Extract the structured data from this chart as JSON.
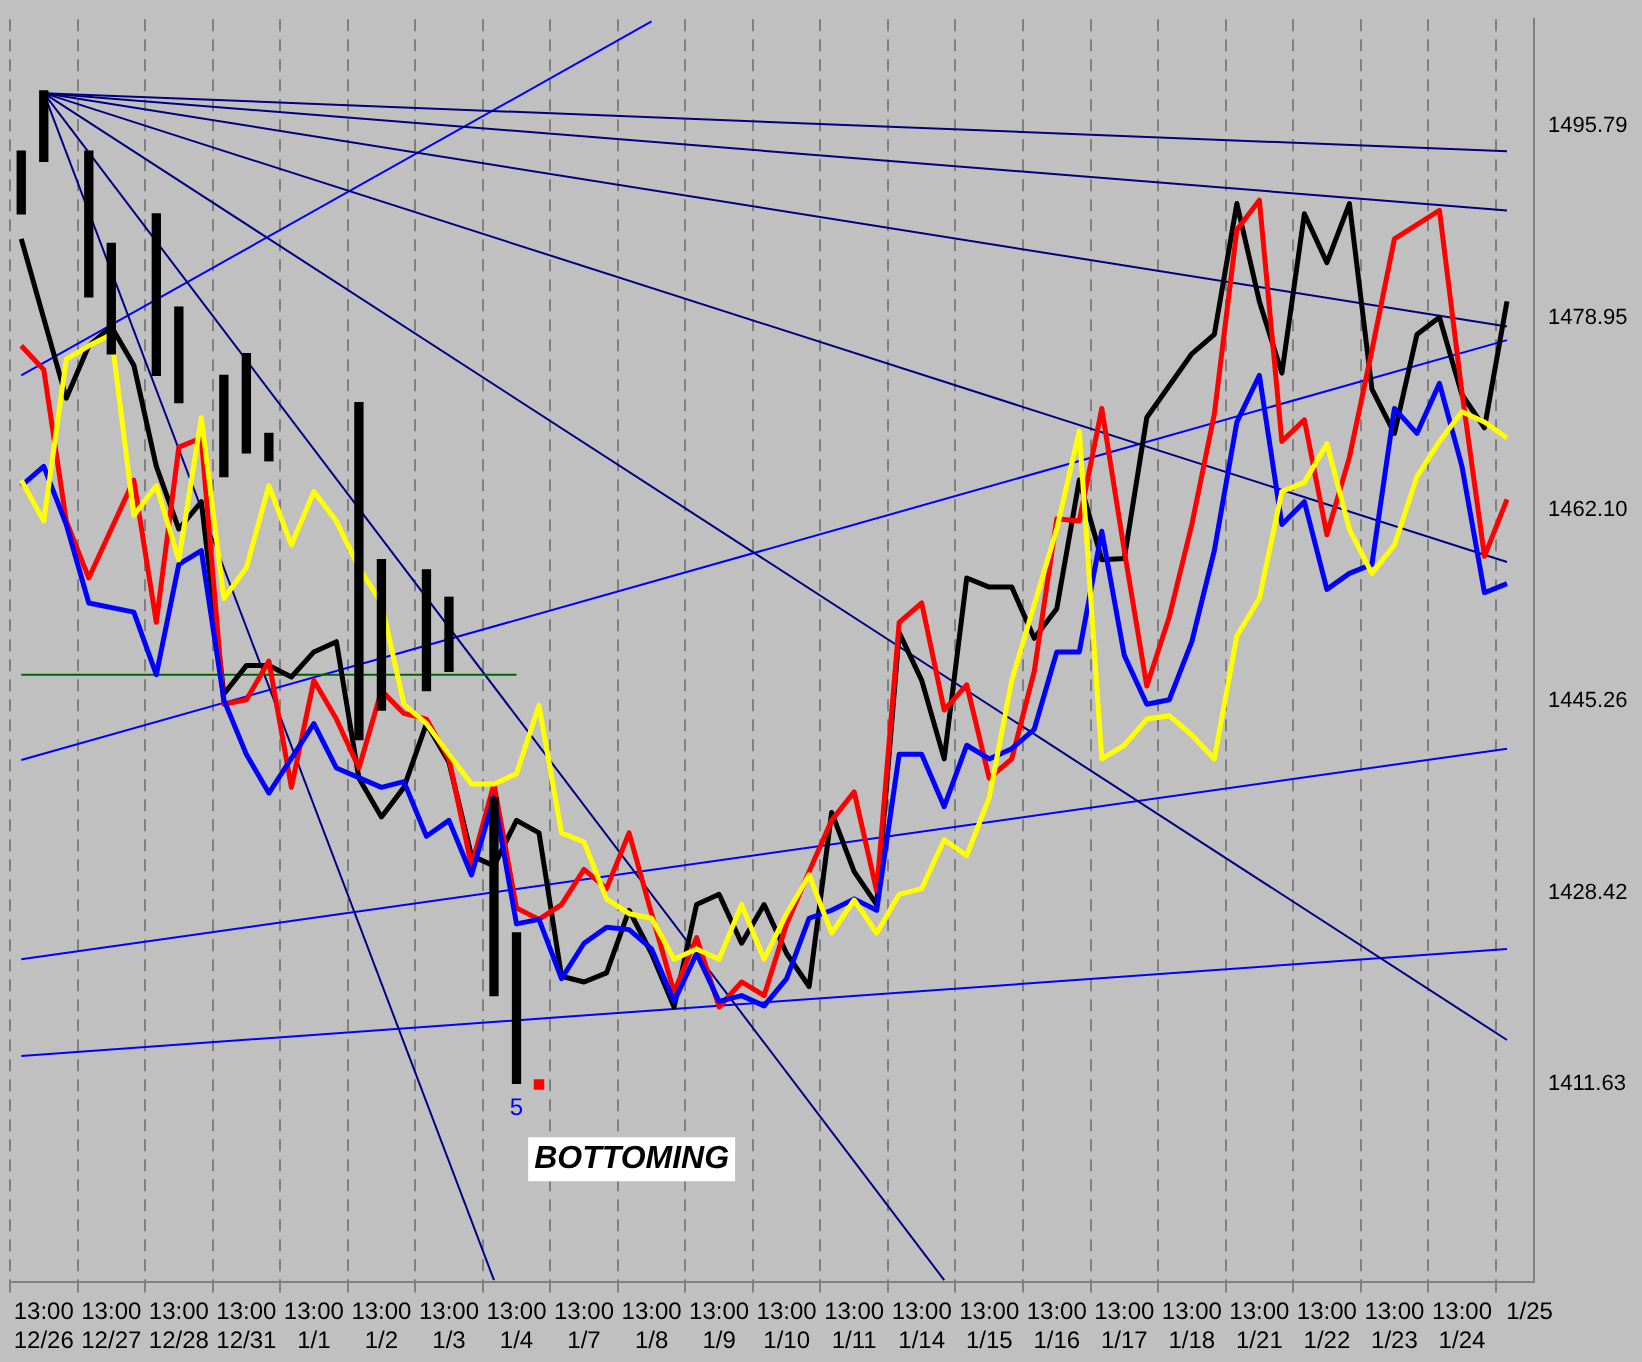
{
  "chart_data": {
    "type": "line",
    "ylim": [
      1394.2,
      1505.2
    ],
    "categories": [
      null,
      "13:00\n12/26",
      null,
      null,
      "13:00\n12/27",
      null,
      null,
      "13:00\n12/28",
      null,
      null,
      "13:00\n12/31",
      null,
      null,
      "13:00\n1/1",
      null,
      null,
      "13:00\n1/2",
      null,
      null,
      "13:00\n1/3",
      null,
      null,
      "13:00\n1/4",
      null,
      null,
      "13:00\n1/7",
      null,
      null,
      "13:00\n1/8",
      null,
      null,
      "13:00\n1/9",
      null,
      null,
      "13:00\n1/10",
      null,
      null,
      "13:00\n1/11",
      null,
      null,
      "13:00\n1/14",
      null,
      null,
      "13:00\n1/15",
      null,
      null,
      "13:00\n1/16",
      null,
      null,
      "13:00\n1/17",
      null,
      null,
      "13:00\n1/18",
      null,
      null,
      "13:00\n1/21",
      null,
      null,
      "13:00\n1/22",
      null,
      null,
      "13:00\n1/23",
      null,
      null,
      "13:00\n1/24",
      null,
      null,
      "1/25"
    ],
    "yticks": [
      1411.63,
      1428.42,
      1445.26,
      {
        "value": 1462.1,
        "label": "1462.10"
      },
      1478.95,
      1495.79
    ],
    "grid": "x",
    "series": [
      {
        "color": "#ffff00",
        "values": [
          1464.7,
          1461.1,
          1475.3,
          1476.5,
          1477.5,
          1461.6,
          1464.2,
          1457.7,
          1470.2,
          1454.3,
          1457.0,
          1464.2,
          1459.0,
          1463.7,
          1461.1,
          1457.0,
          1453.9,
          1445.0,
          1443.3,
          1440.6,
          1438.0,
          1438.0,
          1438.9,
          1444.9,
          1433.7,
          1432.9,
          1427.9,
          1426.6,
          1426.2,
          1422.6,
          1423.5,
          1422.6,
          1427.4,
          1422.6,
          1426.6,
          1430.0,
          1424.9,
          1427.8,
          1424.9,
          1428.3,
          1428.8,
          1433.1,
          1431.7,
          1436.8,
          1447.1,
          null,
          1460.4,
          1469.0,
          1440.2,
          1441.4,
          1443.7,
          1444.0,
          1442.3,
          1440.2,
          1451.0,
          1454.3,
          1463.7,
          1464.5,
          1467.9,
          1460.4,
          1456.5,
          1459.0,
          1465.0,
          1468.1,
          1470.7,
          1469.8,
          1468.4,
          null
        ]
      },
      {
        "color": "#0000ff",
        "values": [
          1464.2,
          1465.9,
          1460.8,
          1453.9,
          null,
          1453.1,
          1447.6,
          1457.3,
          1458.5,
          1445.4,
          1440.6,
          1437.2,
          null,
          1443.3,
          1439.4,
          null,
          1437.7,
          1438.2,
          1433.4,
          1434.8,
          1430.0,
          1436.8,
          1425.7,
          1426.1,
          1420.9,
          1424.0,
          1425.4,
          1425.2,
          1423.5,
          1418.9,
          1423.1,
          1418.9,
          1419.4,
          1418.5,
          1420.9,
          1426.2,
          1426.9,
          1427.9,
          1426.9,
          1440.6,
          1440.6,
          1436.0,
          1441.4,
          1440.2,
          1441.1,
          1442.8,
          1449.6,
          1449.6,
          1460.2,
          1449.3,
          1445.0,
          1445.4,
          1450.5,
          1458.5,
          1469.8,
          1473.9,
          1460.8,
          1462.8,
          1455.1,
          1456.5,
          1457.3,
          1471.0,
          1468.8,
          1473.2,
          1465.9,
          1454.8,
          1455.6,
          null
        ]
      },
      {
        "color": "#ff0000",
        "values": [
          1476.5,
          1474.4,
          1461.1,
          1456.1,
          null,
          1464.7,
          1452.2,
          1467.6,
          1468.4,
          1445.0,
          1445.4,
          1448.8,
          1437.7,
          1447.1,
          1443.7,
          1439.4,
          1446.2,
          1444.2,
          1443.7,
          1440.2,
          1430.8,
          1438.0,
          1427.1,
          1426.1,
          1427.4,
          1430.5,
          1428.8,
          1433.7,
          1426.6,
          1419.7,
          1424.5,
          1418.4,
          1420.6,
          1419.4,
          1425.7,
          1430.3,
          1434.8,
          1437.3,
          1428.6,
          1452.2,
          1453.9,
          1444.5,
          1446.7,
          1438.5,
          1440.2,
          1447.9,
          1461.3,
          1461.1,
          1471.0,
          1458.5,
          1446.6,
          1452.7,
          1460.8,
          1470.5,
          1486.7,
          1489.3,
          1468.1,
          1470.0,
          1459.9,
          1466.7,
          1476.1,
          1485.9,
          null,
          1488.4,
          1472.4,
          1458.0,
          1463.0,
          null
        ]
      },
      {
        "color": "#000000",
        "values": [
          1485.9,
          null,
          1471.9,
          1476.5,
          1478.2,
          1474.8,
          1465.9,
          1460.4,
          1462.8,
          1445.9,
          1448.4,
          1448.4,
          1447.4,
          1449.6,
          1450.5,
          1438.5,
          1435.1,
          1437.7,
          1443.3,
          1439.9,
          1431.7,
          1430.8,
          1434.8,
          1433.7,
          1421.1,
          1420.6,
          1421.4,
          1426.9,
          1423.1,
          1418.4,
          1427.4,
          1428.3,
          1424.0,
          1427.4,
          1423.1,
          1420.2,
          1435.5,
          1430.3,
          1427.4,
          1451.3,
          1447.1,
          1440.2,
          1456.1,
          1455.3,
          1455.3,
          1450.8,
          1453.4,
          1464.7,
          1457.7,
          1457.8,
          1470.2,
          null,
          1475.8,
          1477.5,
          1489.0,
          1480.4,
          1474.1,
          1488.1,
          1483.8,
          1489.0,
          1472.7,
          1468.8,
          1477.5,
          1479.0,
          1472.2,
          1469.3,
          1480.4,
          null
        ]
      },
      {
        "type": "bar",
        "color": "#000000",
        "base": [
          1488.1,
          1492.7,
          null,
          1480.8,
          1475.8,
          null,
          1473.9,
          1471.5,
          null,
          1465.0,
          1467.1,
          1466.4,
          null,
          null,
          null,
          1441.9,
          1444.5,
          null,
          1446.2,
          1447.9,
          null,
          1419.4,
          1411.7,
          null,
          null,
          null,
          null,
          null,
          null,
          null,
          null,
          null,
          null,
          null,
          null,
          null,
          null,
          null,
          null,
          null,
          null,
          null,
          null,
          null,
          null,
          null,
          null,
          null,
          null,
          null,
          null,
          null,
          null,
          null,
          null,
          null,
          null,
          null,
          null,
          null,
          null,
          null,
          null,
          null,
          null,
          null,
          null,
          null
        ],
        "values": [
          5.5,
          6.2,
          null,
          12.8,
          9.7,
          null,
          14.2,
          8.4,
          null,
          8.9,
          8.7,
          2.4,
          null,
          null,
          null,
          29.6,
          13.2,
          null,
          10.6,
          6.5,
          null,
          17.4,
          13.2,
          null,
          null,
          null,
          null,
          null,
          null,
          null,
          null,
          null,
          null,
          null,
          null,
          null,
          null,
          null,
          null,
          null,
          null,
          null,
          null,
          null,
          null,
          null,
          null,
          null,
          null,
          null,
          null,
          null,
          null,
          null,
          null,
          null,
          null,
          null,
          null,
          null,
          null,
          null,
          null,
          null,
          null,
          null,
          null,
          null
        ]
      },
      {
        "color": "#006400",
        "values": [
          1447.6,
          null,
          null,
          null,
          null,
          null,
          null,
          null,
          null,
          null,
          null,
          null,
          null,
          null,
          null,
          null,
          null,
          null,
          null,
          null,
          null,
          null,
          1447.6,
          null,
          null,
          null,
          null,
          null,
          null,
          null,
          null,
          null,
          null,
          null,
          null,
          null,
          null,
          null,
          null,
          null,
          null,
          null,
          null,
          null,
          null,
          null,
          null,
          null,
          null,
          null,
          null,
          null,
          null,
          null,
          null,
          null,
          null,
          null,
          null,
          null,
          null,
          null,
          null,
          null,
          null,
          null,
          null,
          null
        ]
      },
      {
        "color": "#000080",
        "values": [
          null,
          1498.7,
          null,
          null,
          null,
          null,
          null,
          null,
          null,
          null,
          null,
          null,
          null,
          null,
          null,
          null,
          null,
          null,
          null,
          null,
          null,
          null,
          null,
          null,
          null,
          null,
          null,
          null,
          null,
          null,
          null,
          null,
          null,
          null,
          null,
          null,
          null,
          null,
          null,
          null,
          null,
          null,
          null,
          null,
          null,
          null,
          null,
          null,
          null,
          null,
          null,
          null,
          null,
          null,
          null,
          null,
          null,
          null,
          null,
          null,
          null,
          null,
          null,
          null,
          null,
          null,
          1493.6,
          null
        ]
      },
      {
        "color": "#000080",
        "values": [
          null,
          1498.7,
          null,
          null,
          null,
          null,
          null,
          null,
          null,
          null,
          null,
          null,
          null,
          null,
          null,
          null,
          null,
          null,
          null,
          null,
          null,
          null,
          null,
          null,
          null,
          null,
          null,
          null,
          null,
          null,
          null,
          null,
          null,
          null,
          null,
          null,
          null,
          null,
          null,
          null,
          null,
          null,
          null,
          null,
          null,
          null,
          null,
          null,
          null,
          null,
          null,
          null,
          null,
          null,
          null,
          null,
          null,
          null,
          null,
          null,
          null,
          null,
          null,
          null,
          null,
          null,
          1488.4,
          null
        ]
      },
      {
        "color": "#000080",
        "values": [
          null,
          1498.7,
          null,
          null,
          null,
          null,
          null,
          null,
          null,
          null,
          null,
          null,
          null,
          null,
          null,
          null,
          null,
          null,
          null,
          null,
          null,
          null,
          null,
          null,
          null,
          null,
          null,
          null,
          null,
          null,
          null,
          null,
          null,
          null,
          null,
          null,
          null,
          null,
          null,
          null,
          null,
          null,
          null,
          null,
          null,
          null,
          null,
          null,
          null,
          null,
          null,
          null,
          null,
          null,
          null,
          null,
          null,
          null,
          null,
          null,
          null,
          null,
          null,
          null,
          null,
          null,
          1478.2,
          null
        ]
      },
      {
        "color": "#000080",
        "values": [
          null,
          1498.7,
          null,
          null,
          null,
          null,
          null,
          null,
          null,
          null,
          null,
          null,
          null,
          null,
          null,
          null,
          null,
          null,
          null,
          null,
          null,
          null,
          null,
          null,
          null,
          null,
          null,
          null,
          null,
          null,
          null,
          null,
          null,
          null,
          null,
          null,
          null,
          null,
          null,
          null,
          null,
          null,
          null,
          null,
          null,
          null,
          null,
          null,
          null,
          null,
          null,
          null,
          null,
          null,
          null,
          null,
          null,
          null,
          null,
          null,
          null,
          null,
          null,
          null,
          null,
          null,
          1457.5,
          null
        ]
      },
      {
        "color": "#000080",
        "values": [
          null,
          1498.7,
          null,
          null,
          null,
          null,
          null,
          null,
          null,
          null,
          null,
          null,
          null,
          null,
          null,
          null,
          null,
          null,
          null,
          null,
          null,
          null,
          null,
          null,
          null,
          null,
          null,
          null,
          null,
          null,
          null,
          null,
          null,
          null,
          null,
          null,
          null,
          null,
          null,
          null,
          null,
          null,
          null,
          null,
          null,
          null,
          null,
          null,
          null,
          null,
          null,
          null,
          null,
          null,
          null,
          null,
          null,
          null,
          null,
          null,
          null,
          null,
          null,
          null,
          null,
          null,
          1415.5,
          null
        ]
      },
      {
        "color": "#000080",
        "values": [
          null,
          1498.7,
          null,
          null,
          null,
          null,
          null,
          null,
          null,
          null,
          null,
          null,
          null,
          null,
          null,
          null,
          null,
          null,
          null,
          null,
          null,
          null,
          null,
          null,
          null,
          null,
          null,
          null,
          null,
          null,
          null,
          null,
          null,
          null,
          null,
          null,
          null,
          null,
          null,
          null,
          null,
          1394.4,
          null,
          null,
          null,
          null,
          null,
          null,
          null,
          null,
          null,
          null,
          null,
          null,
          null,
          null,
          null,
          null,
          null,
          null,
          null,
          null,
          null,
          null,
          null,
          null,
          null,
          null
        ]
      },
      {
        "color": "#000080",
        "values": [
          null,
          1498.7,
          null,
          null,
          null,
          null,
          null,
          null,
          null,
          null,
          null,
          null,
          null,
          null,
          null,
          null,
          null,
          null,
          null,
          null,
          null,
          1394.4,
          null,
          null,
          null,
          null,
          null,
          null,
          null,
          null,
          null,
          null,
          null,
          null,
          null,
          null,
          null,
          null,
          null,
          null,
          null,
          null,
          null,
          null,
          null,
          null,
          null,
          null,
          null,
          null,
          null,
          null,
          null,
          null,
          null,
          null,
          null,
          null,
          null,
          null,
          null,
          null,
          null,
          null,
          null,
          null,
          null,
          null
        ]
      },
      {
        "color": "#0000ff",
        "values": [
          1473.9,
          null,
          null,
          null,
          null,
          null,
          null,
          null,
          null,
          null,
          null,
          null,
          null,
          null,
          null,
          null,
          null,
          null,
          null,
          null,
          null,
          null,
          null,
          null,
          null,
          null,
          null,
          null,
          1505.0,
          null,
          null,
          null,
          null,
          null,
          null,
          null,
          null,
          null,
          null,
          null,
          null,
          null,
          null,
          null,
          null,
          null,
          null,
          null,
          null,
          null,
          null,
          null,
          null,
          null,
          null,
          null,
          null,
          null,
          null,
          null,
          null,
          null,
          null,
          null,
          null,
          null,
          null,
          null
        ]
      },
      {
        "color": "#0000ff",
        "values": [
          1440.1,
          null,
          null,
          null,
          null,
          null,
          null,
          null,
          null,
          null,
          null,
          null,
          null,
          null,
          null,
          null,
          null,
          null,
          null,
          null,
          null,
          null,
          null,
          null,
          null,
          null,
          null,
          null,
          null,
          null,
          null,
          null,
          null,
          null,
          null,
          null,
          null,
          null,
          null,
          null,
          null,
          null,
          null,
          null,
          null,
          null,
          null,
          null,
          null,
          null,
          null,
          null,
          null,
          null,
          null,
          null,
          null,
          null,
          null,
          null,
          null,
          null,
          null,
          null,
          null,
          null,
          1477.0,
          null
        ]
      },
      {
        "color": "#0000ff",
        "values": [
          1422.6,
          null,
          null,
          null,
          null,
          null,
          null,
          null,
          null,
          null,
          null,
          null,
          null,
          null,
          null,
          null,
          null,
          null,
          null,
          null,
          null,
          null,
          null,
          null,
          null,
          null,
          null,
          null,
          null,
          null,
          null,
          null,
          null,
          null,
          null,
          null,
          null,
          null,
          null,
          null,
          null,
          null,
          null,
          null,
          null,
          null,
          null,
          null,
          null,
          null,
          null,
          null,
          null,
          null,
          null,
          null,
          null,
          null,
          null,
          null,
          null,
          null,
          null,
          null,
          null,
          null,
          1441.1,
          null
        ]
      },
      {
        "color": "#0000ff",
        "values": [
          1414.1,
          null,
          null,
          null,
          null,
          null,
          null,
          null,
          null,
          null,
          null,
          null,
          null,
          null,
          null,
          null,
          null,
          null,
          null,
          null,
          null,
          null,
          null,
          null,
          null,
          null,
          null,
          null,
          null,
          null,
          null,
          null,
          null,
          null,
          null,
          null,
          null,
          null,
          null,
          null,
          null,
          null,
          null,
          null,
          null,
          null,
          null,
          null,
          null,
          null,
          null,
          null,
          null,
          null,
          null,
          null,
          null,
          null,
          null,
          null,
          null,
          null,
          null,
          null,
          null,
          null,
          1423.5,
          null
        ]
      },
      {
        "type": "scatter",
        "color": "#ff0000",
        "marker": "square",
        "values": [
          null,
          null,
          null,
          null,
          null,
          null,
          null,
          null,
          null,
          null,
          null,
          null,
          null,
          null,
          null,
          null,
          null,
          null,
          null,
          null,
          null,
          null,
          null,
          1411.6,
          null,
          null,
          null,
          null,
          null,
          null,
          null,
          null,
          null,
          null,
          null,
          null,
          null,
          null,
          null,
          null,
          null,
          null,
          null,
          null,
          null,
          null,
          null,
          null,
          null,
          null,
          null,
          null,
          null,
          null,
          null,
          null,
          null,
          null,
          null,
          null,
          null,
          null,
          null,
          null,
          null,
          null,
          null,
          null
        ]
      }
    ],
    "annotations": [
      "BOTTOMING",
      "5"
    ]
  }
}
